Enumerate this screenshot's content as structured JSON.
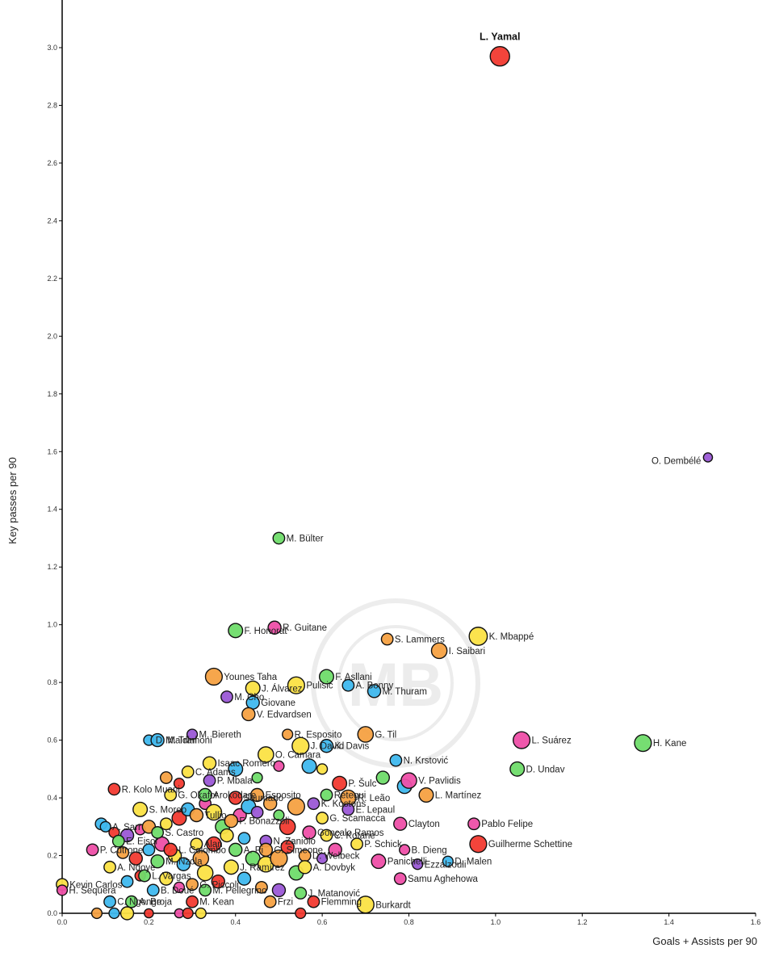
{
  "chart_data": {
    "type": "scatter",
    "title": "",
    "xlabel": "Goals + Assists per 90",
    "ylabel": "Key passes per 90",
    "xlim": [
      0,
      1.6
    ],
    "ylim": [
      0,
      3.2
    ],
    "x_ticks": [
      0.0,
      0.2,
      0.4,
      0.6,
      0.8,
      1.0,
      1.2,
      1.4,
      1.6
    ],
    "y_ticks": [
      0.0,
      0.2,
      0.4,
      0.6,
      0.8,
      1.0,
      1.2,
      1.4,
      1.6,
      1.8,
      2.0,
      2.2,
      2.4,
      2.6,
      2.8,
      3.0
    ],
    "x_tick_labels": [
      "0.0",
      "0.2",
      "0.4",
      "0.6",
      "0.8",
      "1.0",
      "1.2",
      "1.4",
      "1.6"
    ],
    "y_tick_labels": [
      "0.0",
      "0.2",
      "0.4",
      "0.6",
      "0.8",
      "1.0",
      "1.2",
      "1.4",
      "1.6",
      "1.8",
      "2.0",
      "2.2",
      "2.4",
      "2.6",
      "2.8",
      "3.0"
    ],
    "grid": false,
    "colors": {
      "red": "#f23a30",
      "purple": "#9b59d6",
      "green": "#6fdc6a",
      "orange": "#f5a142",
      "yellow": "#fbe145",
      "blue": "#3fb8ee",
      "pink": "#ee4fa8",
      "axis": "#000000"
    },
    "labeled_points": [
      {
        "name": "L. Yamal",
        "x": 1.01,
        "y": 2.97,
        "size": 1.5,
        "color": "red",
        "highlight": true
      },
      {
        "name": "O. Dembélé",
        "x": 1.49,
        "y": 1.58,
        "size": 0.7,
        "color": "purple"
      },
      {
        "name": "M. Bülter",
        "x": 0.5,
        "y": 1.3,
        "size": 0.9,
        "color": "green"
      },
      {
        "name": "F. Honorat",
        "x": 0.4,
        "y": 0.98,
        "size": 1.1,
        "color": "green"
      },
      {
        "name": "R. Guitane",
        "x": 0.49,
        "y": 0.99,
        "size": 1.0,
        "color": "pink"
      },
      {
        "name": "S. Lammers",
        "x": 0.75,
        "y": 0.95,
        "size": 0.9,
        "color": "orange"
      },
      {
        "name": "K. Mbappé",
        "x": 0.96,
        "y": 0.96,
        "size": 1.4,
        "color": "yellow"
      },
      {
        "name": "I. Saibari",
        "x": 0.87,
        "y": 0.91,
        "size": 1.2,
        "color": "orange"
      },
      {
        "name": "F. Asllani",
        "x": 0.61,
        "y": 0.82,
        "size": 1.1,
        "color": "green"
      },
      {
        "name": "Younes Taha",
        "x": 0.35,
        "y": 0.82,
        "size": 1.3,
        "color": "orange"
      },
      {
        "name": "J. Álvarez",
        "x": 0.44,
        "y": 0.78,
        "size": 1.1,
        "color": "yellow"
      },
      {
        "name": "Pulisic",
        "x": 0.54,
        "y": 0.79,
        "size": 1.3,
        "color": "yellow"
      },
      {
        "name": "A. Bonny",
        "x": 0.66,
        "y": 0.79,
        "size": 0.9,
        "color": "blue"
      },
      {
        "name": "M. Thuram",
        "x": 0.72,
        "y": 0.77,
        "size": 1.0,
        "color": "blue"
      },
      {
        "name": "M. Cho",
        "x": 0.38,
        "y": 0.75,
        "size": 0.9,
        "color": "purple"
      },
      {
        "name": "Giovane",
        "x": 0.44,
        "y": 0.73,
        "size": 1.0,
        "color": "blue"
      },
      {
        "name": "V. Edvardsen",
        "x": 0.43,
        "y": 0.69,
        "size": 1.0,
        "color": "orange"
      },
      {
        "name": "M. Biereth",
        "x": 0.3,
        "y": 0.62,
        "size": 0.8,
        "color": "purple"
      },
      {
        "name": "D. Maldini",
        "x": 0.2,
        "y": 0.6,
        "size": 0.8,
        "color": "blue"
      },
      {
        "name": "M. Tramoni",
        "x": 0.22,
        "y": 0.6,
        "size": 1.0,
        "color": "blue"
      },
      {
        "name": "R. Esposito",
        "x": 0.52,
        "y": 0.62,
        "size": 0.8,
        "color": "orange"
      },
      {
        "name": "J. David",
        "x": 0.55,
        "y": 0.58,
        "size": 1.3,
        "color": "yellow"
      },
      {
        "name": "K. Davis",
        "x": 0.61,
        "y": 0.58,
        "size": 1.0,
        "color": "blue"
      },
      {
        "name": "G. Til",
        "x": 0.7,
        "y": 0.62,
        "size": 1.2,
        "color": "orange"
      },
      {
        "name": "L. Suárez",
        "x": 1.06,
        "y": 0.6,
        "size": 1.3,
        "color": "pink"
      },
      {
        "name": "H. Kane",
        "x": 1.34,
        "y": 0.59,
        "size": 1.3,
        "color": "green"
      },
      {
        "name": "Isaac Romero",
        "x": 0.34,
        "y": 0.52,
        "size": 1.0,
        "color": "yellow"
      },
      {
        "name": "O. Camara",
        "x": 0.47,
        "y": 0.55,
        "size": 1.2,
        "color": "yellow"
      },
      {
        "name": "N. Krstović",
        "x": 0.77,
        "y": 0.53,
        "size": 0.9,
        "color": "blue"
      },
      {
        "name": "D. Undav",
        "x": 1.05,
        "y": 0.5,
        "size": 1.1,
        "color": "green"
      },
      {
        "name": "C. Adams",
        "x": 0.29,
        "y": 0.49,
        "size": 0.9,
        "color": "yellow"
      },
      {
        "name": "P. Mbala",
        "x": 0.34,
        "y": 0.46,
        "size": 0.9,
        "color": "purple"
      },
      {
        "name": "R. Kolo Muani",
        "x": 0.12,
        "y": 0.43,
        "size": 0.9,
        "color": "red"
      },
      {
        "name": "P. Šulc",
        "x": 0.64,
        "y": 0.45,
        "size": 1.1,
        "color": "red"
      },
      {
        "name": "V. Pavlidis",
        "x": 0.8,
        "y": 0.46,
        "size": 1.2,
        "color": "pink"
      },
      {
        "name": "L. Martínez",
        "x": 0.84,
        "y": 0.41,
        "size": 1.1,
        "color": "orange"
      },
      {
        "name": "G. Okafor",
        "x": 0.25,
        "y": 0.41,
        "size": 0.9,
        "color": "yellow"
      },
      {
        "name": "Arokodare",
        "x": 0.33,
        "y": 0.41,
        "size": 1.0,
        "color": "green"
      },
      {
        "name": "Esposito",
        "x": 0.45,
        "y": 0.41,
        "size": 1.0,
        "color": "orange"
      },
      {
        "name": "R. Leão",
        "x": 0.66,
        "y": 0.4,
        "size": 1.2,
        "color": "orange"
      },
      {
        "name": "Retegui",
        "x": 0.61,
        "y": 0.41,
        "size": 0.9,
        "color": "green"
      },
      {
        "name": "K. Kostons",
        "x": 0.58,
        "y": 0.38,
        "size": 0.9,
        "color": "purple"
      },
      {
        "name": "S. Moreo",
        "x": 0.18,
        "y": 0.36,
        "size": 1.1,
        "color": "yellow"
      },
      {
        "name": "Soumano",
        "x": 0.4,
        "y": 0.4,
        "size": 1.0,
        "color": "red"
      },
      {
        "name": "E. Lepaul",
        "x": 0.66,
        "y": 0.36,
        "size": 0.9,
        "color": "purple"
      },
      {
        "name": "Tullio",
        "x": 0.31,
        "y": 0.34,
        "size": 1.0,
        "color": "orange"
      },
      {
        "name": "F. Bonazzoli",
        "x": 0.39,
        "y": 0.32,
        "size": 1.0,
        "color": "orange"
      },
      {
        "name": "A. Sarr",
        "x": 0.1,
        "y": 0.3,
        "size": 0.8,
        "color": "blue"
      },
      {
        "name": "G. Scamacca",
        "x": 0.6,
        "y": 0.33,
        "size": 0.9,
        "color": "yellow"
      },
      {
        "name": "Gonçalo Ramos",
        "x": 0.57,
        "y": 0.28,
        "size": 1.0,
        "color": "pink"
      },
      {
        "name": "Clayton",
        "x": 0.78,
        "y": 0.31,
        "size": 1.0,
        "color": "pink"
      },
      {
        "name": "Pablo Felipe",
        "x": 0.95,
        "y": 0.31,
        "size": 0.9,
        "color": "pink"
      },
      {
        "name": "S. Castro",
        "x": 0.22,
        "y": 0.28,
        "size": 0.9,
        "color": "green"
      },
      {
        "name": "C. Kotane",
        "x": 0.61,
        "y": 0.27,
        "size": 0.9,
        "color": "yellow"
      },
      {
        "name": "E. Eisor",
        "x": 0.13,
        "y": 0.25,
        "size": 0.9,
        "color": "green"
      },
      {
        "name": "N. Zaniolo",
        "x": 0.47,
        "y": 0.25,
        "size": 0.9,
        "color": "purple"
      },
      {
        "name": "Guilherme Schettine",
        "x": 0.96,
        "y": 0.24,
        "size": 1.3,
        "color": "red"
      },
      {
        "name": "P. Cutrone",
        "x": 0.07,
        "y": 0.22,
        "size": 0.9,
        "color": "pink"
      },
      {
        "name": "Alan",
        "x": 0.31,
        "y": 0.24,
        "size": 0.9,
        "color": "yellow"
      },
      {
        "name": "L. Colombo",
        "x": 0.25,
        "y": 0.22,
        "size": 1.0,
        "color": "red"
      },
      {
        "name": "G. Simeone",
        "x": 0.47,
        "y": 0.22,
        "size": 1.0,
        "color": "orange"
      },
      {
        "name": "A. Pi",
        "x": 0.4,
        "y": 0.22,
        "size": 1.0,
        "color": "green"
      },
      {
        "name": "P. Schick",
        "x": 0.68,
        "y": 0.24,
        "size": 0.9,
        "color": "yellow"
      },
      {
        "name": "B. Dieng",
        "x": 0.79,
        "y": 0.22,
        "size": 0.8,
        "color": "pink"
      },
      {
        "name": "D. Welbeck",
        "x": 0.56,
        "y": 0.2,
        "size": 0.9,
        "color": "orange"
      },
      {
        "name": "M. Nzola",
        "x": 0.22,
        "y": 0.18,
        "size": 1.0,
        "color": "green"
      },
      {
        "name": "A. Ndoye",
        "x": 0.11,
        "y": 0.16,
        "size": 0.9,
        "color": "yellow"
      },
      {
        "name": "Panichelli",
        "x": 0.73,
        "y": 0.18,
        "size": 1.1,
        "color": "pink"
      },
      {
        "name": "Ezzalzouli",
        "x": 0.82,
        "y": 0.17,
        "size": 0.8,
        "color": "purple"
      },
      {
        "name": "D. Malen",
        "x": 0.89,
        "y": 0.18,
        "size": 0.8,
        "color": "blue"
      },
      {
        "name": "A. Dovbyk",
        "x": 0.56,
        "y": 0.16,
        "size": 1.0,
        "color": "yellow"
      },
      {
        "name": "J. Ramírez",
        "x": 0.39,
        "y": 0.16,
        "size": 1.1,
        "color": "yellow"
      },
      {
        "name": "L. Vargas",
        "x": 0.19,
        "y": 0.13,
        "size": 0.9,
        "color": "green"
      },
      {
        "name": "Samu Aghehowa",
        "x": 0.78,
        "y": 0.12,
        "size": 0.9,
        "color": "pink"
      },
      {
        "name": "G. Piccoli",
        "x": 0.3,
        "y": 0.1,
        "size": 0.9,
        "color": "orange"
      },
      {
        "name": "M. Pellegrino",
        "x": 0.33,
        "y": 0.08,
        "size": 0.9,
        "color": "green"
      },
      {
        "name": "B. Doué",
        "x": 0.21,
        "y": 0.08,
        "size": 0.9,
        "color": "blue"
      },
      {
        "name": "Kevin Carlos",
        "x": 0.0,
        "y": 0.1,
        "size": 0.9,
        "color": "yellow"
      },
      {
        "name": "H. Sequera",
        "x": 0.0,
        "y": 0.08,
        "size": 0.8,
        "color": "pink"
      },
      {
        "name": "A. Broja",
        "x": 0.16,
        "y": 0.04,
        "size": 0.9,
        "color": "green"
      },
      {
        "name": "C. Ngonge",
        "x": 0.11,
        "y": 0.04,
        "size": 0.9,
        "color": "blue"
      },
      {
        "name": "M. Kean",
        "x": 0.3,
        "y": 0.04,
        "size": 0.9,
        "color": "red"
      },
      {
        "name": "J. Matanović",
        "x": 0.55,
        "y": 0.07,
        "size": 0.9,
        "color": "green"
      },
      {
        "name": "Frzi",
        "x": 0.48,
        "y": 0.04,
        "size": 0.9,
        "color": "orange"
      },
      {
        "name": "Flemming",
        "x": 0.58,
        "y": 0.04,
        "size": 0.9,
        "color": "red"
      },
      {
        "name": "Burkardt",
        "x": 0.7,
        "y": 0.03,
        "size": 1.3,
        "color": "yellow"
      }
    ],
    "unlabeled_points": [
      {
        "x": 0.09,
        "y": 0.31,
        "size": 0.9,
        "color": "blue"
      },
      {
        "x": 0.12,
        "y": 0.28,
        "size": 0.8,
        "color": "red"
      },
      {
        "x": 0.15,
        "y": 0.27,
        "size": 1.0,
        "color": "purple"
      },
      {
        "x": 0.18,
        "y": 0.29,
        "size": 0.8,
        "color": "pink"
      },
      {
        "x": 0.2,
        "y": 0.3,
        "size": 1.0,
        "color": "orange"
      },
      {
        "x": 0.24,
        "y": 0.31,
        "size": 0.9,
        "color": "yellow"
      },
      {
        "x": 0.27,
        "y": 0.33,
        "size": 1.1,
        "color": "red"
      },
      {
        "x": 0.29,
        "y": 0.36,
        "size": 1.0,
        "color": "blue"
      },
      {
        "x": 0.33,
        "y": 0.38,
        "size": 0.9,
        "color": "pink"
      },
      {
        "x": 0.35,
        "y": 0.35,
        "size": 1.2,
        "color": "yellow"
      },
      {
        "x": 0.37,
        "y": 0.3,
        "size": 1.1,
        "color": "green"
      },
      {
        "x": 0.41,
        "y": 0.34,
        "size": 1.0,
        "color": "pink"
      },
      {
        "x": 0.43,
        "y": 0.37,
        "size": 1.1,
        "color": "blue"
      },
      {
        "x": 0.45,
        "y": 0.35,
        "size": 0.9,
        "color": "purple"
      },
      {
        "x": 0.48,
        "y": 0.38,
        "size": 1.0,
        "color": "orange"
      },
      {
        "x": 0.5,
        "y": 0.34,
        "size": 0.8,
        "color": "green"
      },
      {
        "x": 0.52,
        "y": 0.3,
        "size": 1.2,
        "color": "red"
      },
      {
        "x": 0.54,
        "y": 0.37,
        "size": 1.3,
        "color": "orange"
      },
      {
        "x": 0.14,
        "y": 0.21,
        "size": 0.9,
        "color": "orange"
      },
      {
        "x": 0.17,
        "y": 0.19,
        "size": 1.0,
        "color": "red"
      },
      {
        "x": 0.2,
        "y": 0.22,
        "size": 0.9,
        "color": "blue"
      },
      {
        "x": 0.23,
        "y": 0.24,
        "size": 1.1,
        "color": "pink"
      },
      {
        "x": 0.26,
        "y": 0.2,
        "size": 1.0,
        "color": "yellow"
      },
      {
        "x": 0.28,
        "y": 0.17,
        "size": 1.0,
        "color": "blue"
      },
      {
        "x": 0.32,
        "y": 0.19,
        "size": 1.2,
        "color": "orange"
      },
      {
        "x": 0.35,
        "y": 0.24,
        "size": 1.1,
        "color": "red"
      },
      {
        "x": 0.38,
        "y": 0.27,
        "size": 1.0,
        "color": "yellow"
      },
      {
        "x": 0.42,
        "y": 0.26,
        "size": 0.9,
        "color": "blue"
      },
      {
        "x": 0.44,
        "y": 0.19,
        "size": 1.1,
        "color": "green"
      },
      {
        "x": 0.47,
        "y": 0.17,
        "size": 1.2,
        "color": "yellow"
      },
      {
        "x": 0.5,
        "y": 0.19,
        "size": 1.3,
        "color": "orange"
      },
      {
        "x": 0.52,
        "y": 0.23,
        "size": 1.0,
        "color": "red"
      },
      {
        "x": 0.54,
        "y": 0.14,
        "size": 1.1,
        "color": "green"
      },
      {
        "x": 0.6,
        "y": 0.19,
        "size": 0.8,
        "color": "purple"
      },
      {
        "x": 0.63,
        "y": 0.22,
        "size": 1.0,
        "color": "pink"
      },
      {
        "x": 0.15,
        "y": 0.11,
        "size": 0.9,
        "color": "blue"
      },
      {
        "x": 0.18,
        "y": 0.13,
        "size": 0.8,
        "color": "red"
      },
      {
        "x": 0.24,
        "y": 0.12,
        "size": 1.0,
        "color": "yellow"
      },
      {
        "x": 0.27,
        "y": 0.09,
        "size": 0.8,
        "color": "pink"
      },
      {
        "x": 0.33,
        "y": 0.14,
        "size": 1.2,
        "color": "yellow"
      },
      {
        "x": 0.36,
        "y": 0.11,
        "size": 1.0,
        "color": "red"
      },
      {
        "x": 0.42,
        "y": 0.12,
        "size": 1.0,
        "color": "blue"
      },
      {
        "x": 0.46,
        "y": 0.09,
        "size": 0.9,
        "color": "orange"
      },
      {
        "x": 0.5,
        "y": 0.08,
        "size": 1.0,
        "color": "purple"
      },
      {
        "x": 0.08,
        "y": 0.0,
        "size": 0.8,
        "color": "orange"
      },
      {
        "x": 0.12,
        "y": 0.0,
        "size": 0.8,
        "color": "blue"
      },
      {
        "x": 0.15,
        "y": 0.0,
        "size": 1.0,
        "color": "yellow"
      },
      {
        "x": 0.2,
        "y": 0.0,
        "size": 0.7,
        "color": "red"
      },
      {
        "x": 0.27,
        "y": 0.0,
        "size": 0.7,
        "color": "pink"
      },
      {
        "x": 0.29,
        "y": 0.0,
        "size": 0.8,
        "color": "red"
      },
      {
        "x": 0.32,
        "y": 0.0,
        "size": 0.8,
        "color": "yellow"
      },
      {
        "x": 0.55,
        "y": 0.0,
        "size": 0.8,
        "color": "red"
      },
      {
        "x": 0.4,
        "y": 0.5,
        "size": 1.1,
        "color": "blue"
      },
      {
        "x": 0.45,
        "y": 0.47,
        "size": 0.8,
        "color": "green"
      },
      {
        "x": 0.5,
        "y": 0.51,
        "size": 0.8,
        "color": "pink"
      },
      {
        "x": 0.57,
        "y": 0.51,
        "size": 1.1,
        "color": "blue"
      },
      {
        "x": 0.6,
        "y": 0.5,
        "size": 0.8,
        "color": "yellow"
      },
      {
        "x": 0.74,
        "y": 0.47,
        "size": 1.0,
        "color": "green"
      },
      {
        "x": 0.79,
        "y": 0.44,
        "size": 1.1,
        "color": "blue"
      },
      {
        "x": 0.27,
        "y": 0.45,
        "size": 0.8,
        "color": "red"
      },
      {
        "x": 0.24,
        "y": 0.47,
        "size": 0.9,
        "color": "orange"
      }
    ]
  }
}
